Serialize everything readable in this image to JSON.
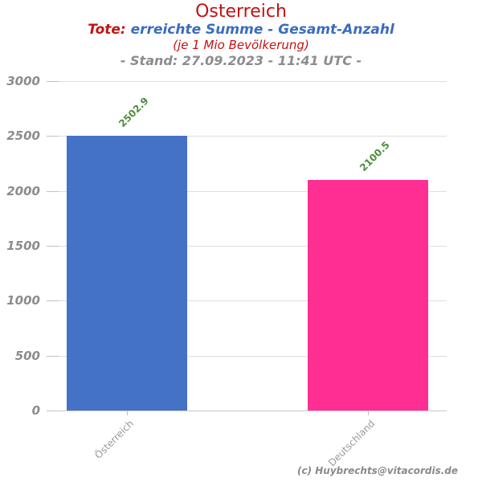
{
  "header": {
    "title": "Osterreich",
    "subtitle_prefix": "Tote:",
    "subtitle_main": " erreichte Summe - Gesamt-Anzahl",
    "subtitle2": "(je 1 Mio Bevölkerung)",
    "stand_line": "- Stand: 27.09.2023 - 11:41 UTC -"
  },
  "chart_data": {
    "type": "bar",
    "title": "Osterreich",
    "subtitle": "Tote: erreichte Summe - Gesamt-Anzahl (je 1 Mio Bevölkerung)",
    "categories": [
      "Österreich",
      "Deutschland"
    ],
    "values": [
      2502.9,
      2100.5
    ],
    "value_labels": [
      "2502.9",
      "2100.5"
    ],
    "bar_colors": [
      "#4472c6",
      "#ff2e93"
    ],
    "value_label_color": "#4e8d3b",
    "xlabel": "",
    "ylabel": "",
    "ylim": [
      0,
      3000
    ],
    "yticks": [
      0,
      500,
      1000,
      1500,
      2000,
      2500,
      3000
    ],
    "grid": true,
    "legend": "none",
    "credit": "(c) Huybrechts@vitacordis.de"
  },
  "colors": {
    "title_red": "#c41212",
    "subtitle_blue": "#3a6cbf",
    "stand_gray": "#8c8c8c",
    "axis_label_gray": "#999999",
    "gridline_gray": "#dedede",
    "bar_blue": "#4472c6",
    "bar_pink": "#ff2e93",
    "value_green": "#4e8d3b"
  }
}
